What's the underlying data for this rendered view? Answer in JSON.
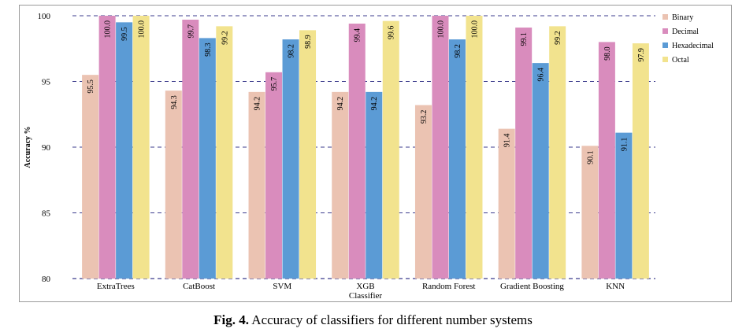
{
  "chart_data": {
    "type": "bar",
    "title": "",
    "xlabel": "Classifier",
    "ylabel": "Accuracy %",
    "ylim": [
      80,
      100
    ],
    "yticks": [
      "80",
      "85",
      "90",
      "95",
      "100"
    ],
    "grid": "horizontal dashed",
    "legend_position": "right",
    "categories": [
      "ExtraTrees",
      "CatBoost",
      "SVM",
      "XGB",
      "Random Forest",
      "Gradient Boosting",
      "KNN"
    ],
    "series": [
      {
        "name": "Binary",
        "color": "#ebc3b2",
        "values": [
          95.5,
          94.3,
          94.2,
          94.2,
          93.2,
          91.4,
          90.1
        ],
        "labels": [
          "95.5",
          "94.3",
          "94.2",
          "94.2",
          "93.2",
          "91.4",
          "90.1"
        ]
      },
      {
        "name": "Decimal",
        "color": "#d98cbd",
        "values": [
          100.0,
          99.7,
          95.7,
          99.4,
          100.0,
          99.1,
          98.0
        ],
        "labels": [
          "100.0",
          "99.7",
          "95.7",
          "99.4",
          "100.0",
          "99.1",
          "98.0"
        ]
      },
      {
        "name": "Hexadecimal",
        "color": "#5b9bd5",
        "values": [
          99.5,
          98.3,
          98.2,
          94.2,
          98.2,
          96.4,
          91.1
        ],
        "labels": [
          "99.5",
          "98.3",
          "98.2",
          "94.2",
          "98.2",
          "96.4",
          "91.1"
        ]
      },
      {
        "name": "Octal",
        "color": "#f2e38e",
        "values": [
          100.0,
          99.2,
          98.9,
          99.6,
          100.0,
          99.2,
          97.9
        ],
        "labels": [
          "100.0",
          "99.2",
          "98.9",
          "99.6",
          "100.0",
          "99.2",
          "97.9"
        ]
      }
    ]
  },
  "caption": {
    "label": "Fig. 4.",
    "text": " Accuracy of classifiers for different number systems"
  }
}
